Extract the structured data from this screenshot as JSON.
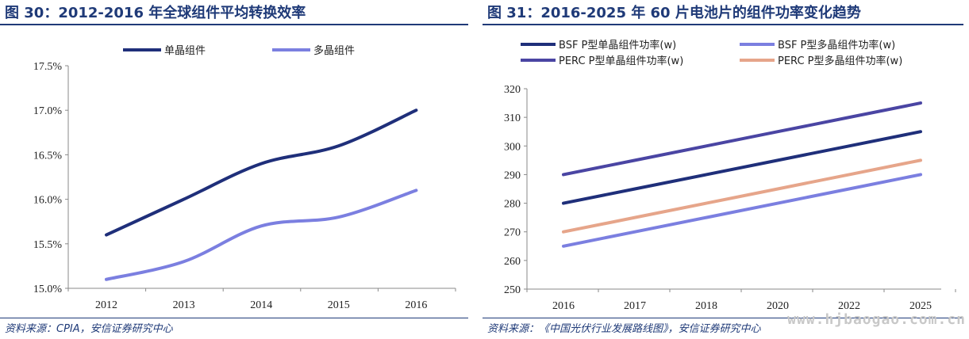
{
  "left": {
    "title": "图 30：2012-2016 年全球组件平均转换效率",
    "source": "资料来源：CPIA，安信证券研究中心"
  },
  "right": {
    "title": "图 31：2016-2025 年 60 片电池片的组件功率变化趋势",
    "source": "资料来源：《中国光伏行业发展路线图》，安信证券研究中心"
  },
  "watermark": "www.hjbaogao.com.cn",
  "chart_data": [
    {
      "type": "line",
      "x": [
        "2012",
        "2013",
        "2014",
        "2015",
        "2016"
      ],
      "series": [
        {
          "name": "单晶组件",
          "color": "#1f2f7a",
          "values": [
            15.6,
            16.0,
            16.4,
            16.6,
            17.0
          ]
        },
        {
          "name": "多晶组件",
          "color": "#7b7fe0",
          "values": [
            15.1,
            15.3,
            15.7,
            15.8,
            16.1
          ]
        }
      ],
      "yticks": [
        "15.0%",
        "15.5%",
        "16.0%",
        "16.5%",
        "17.0%",
        "17.5%"
      ],
      "ylim": [
        15.0,
        17.5
      ],
      "grid": false,
      "legend": "top"
    },
    {
      "type": "line",
      "x": [
        "2016",
        "2017",
        "2018",
        "2020",
        "2022",
        "2025"
      ],
      "series": [
        {
          "name": "BSF P型单晶组件功率(w)",
          "color": "#1f2f7a",
          "values": [
            280,
            285,
            290,
            295,
            300,
            305
          ]
        },
        {
          "name": "BSF P型多晶组件功率(w)",
          "color": "#7b7fe0",
          "values": [
            265,
            270,
            275,
            280,
            285,
            290
          ]
        },
        {
          "name": "PERC P型单晶组件功率(w)",
          "color": "#4a45a3",
          "values": [
            290,
            295,
            300,
            305,
            310,
            315
          ]
        },
        {
          "name": "PERC P型多晶组件功率(w)",
          "color": "#e6a58a",
          "values": [
            270,
            275,
            280,
            285,
            290,
            295
          ]
        }
      ],
      "yticks": [
        "250",
        "260",
        "270",
        "280",
        "290",
        "300",
        "310",
        "320"
      ],
      "ylim": [
        250,
        320
      ],
      "grid": false,
      "legend": "top"
    }
  ]
}
